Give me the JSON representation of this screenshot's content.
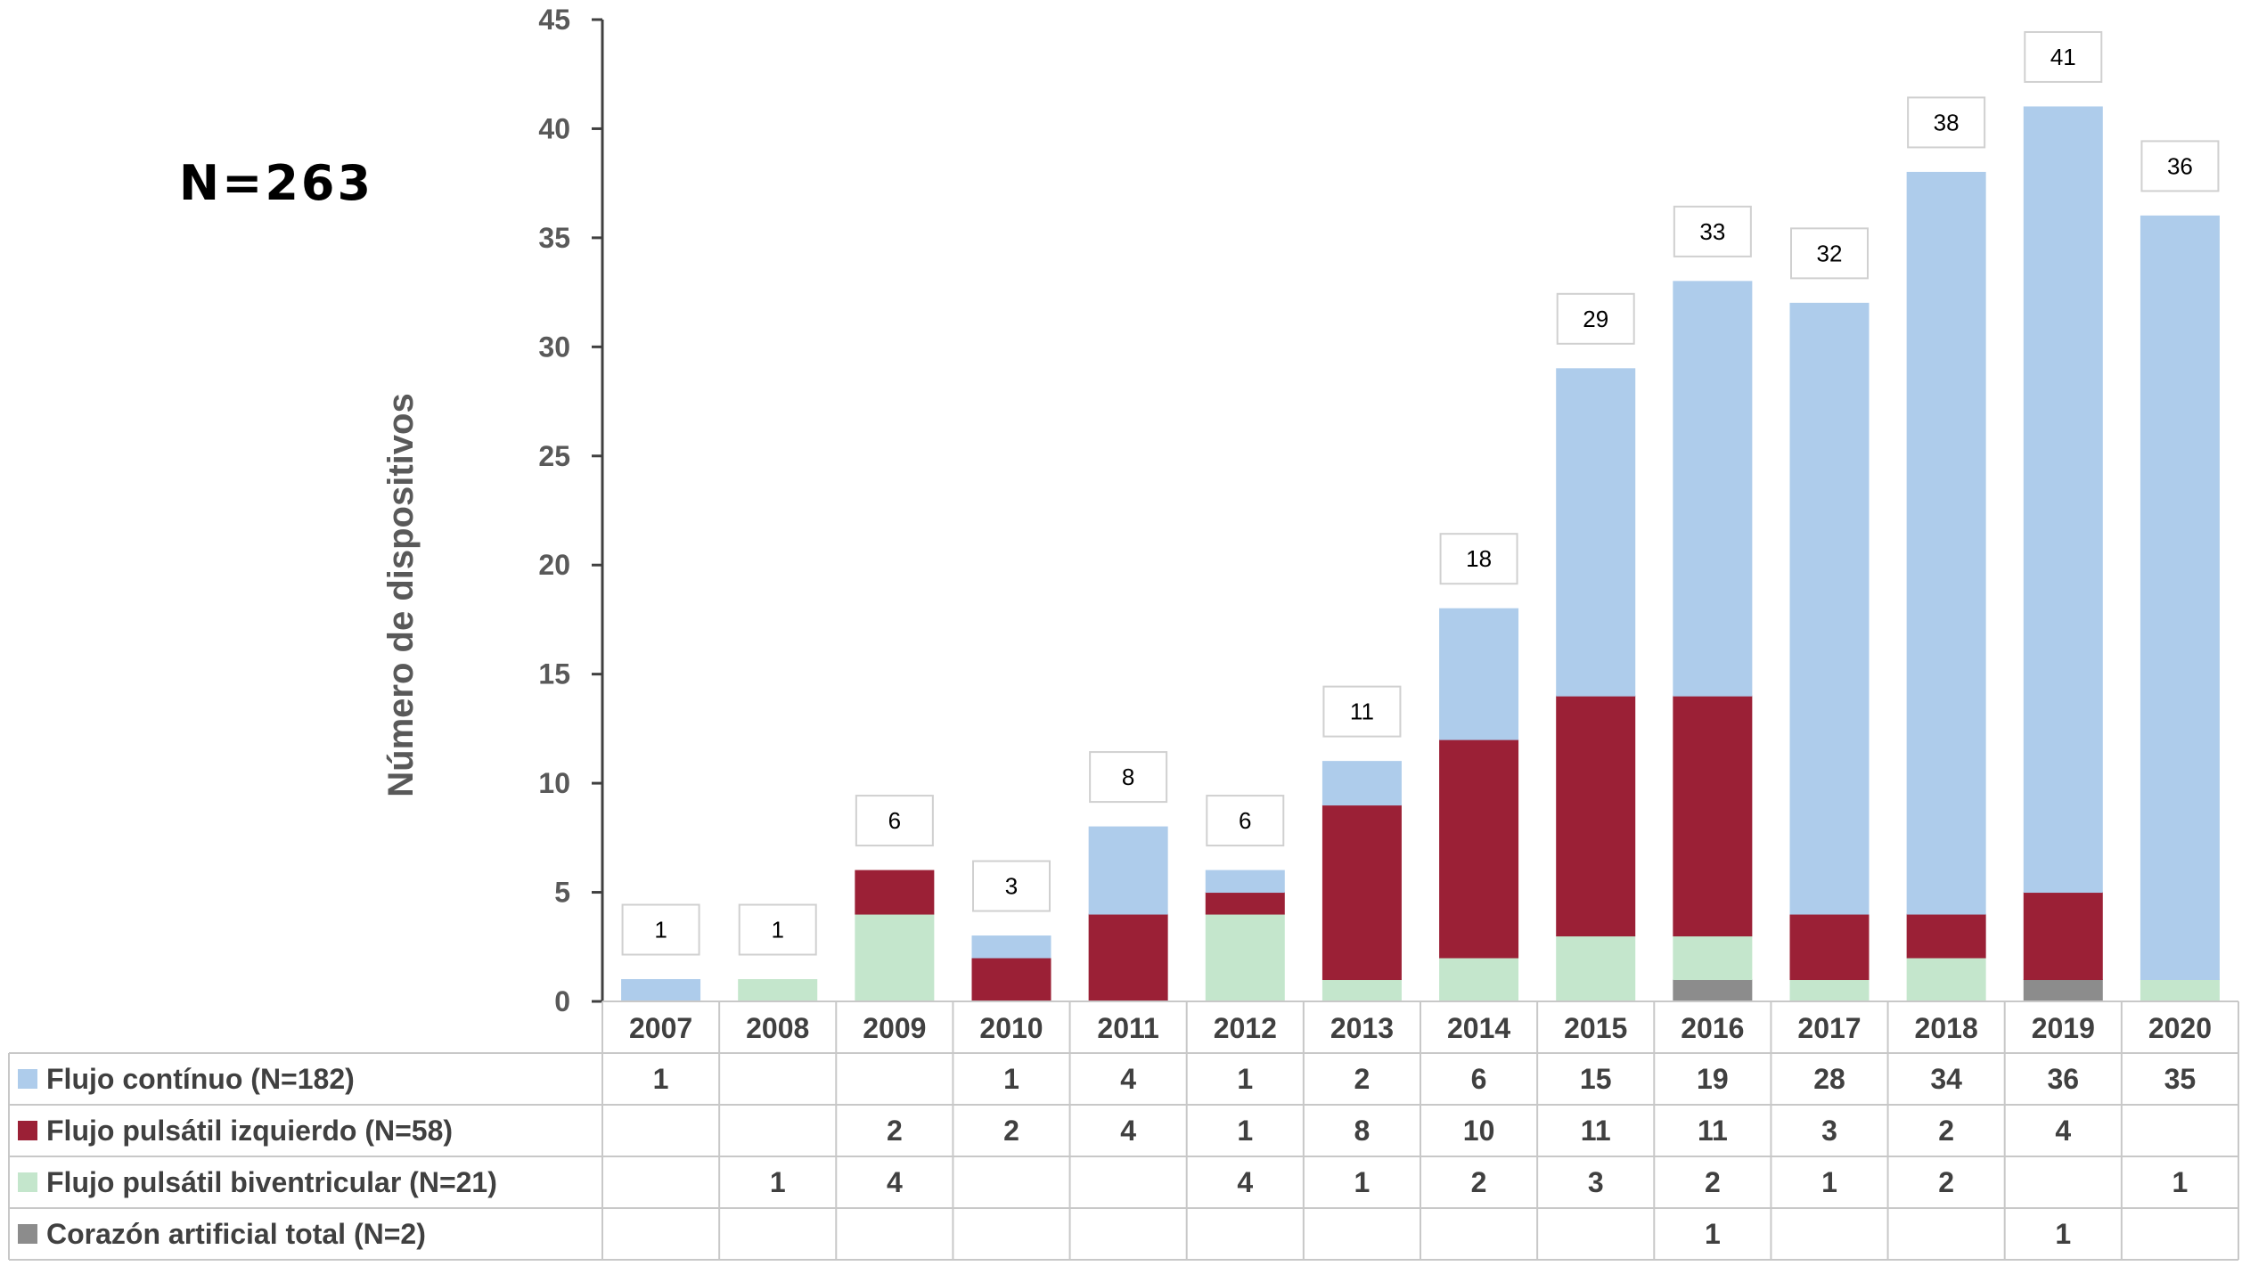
{
  "annotation": "N=263",
  "chart_data": {
    "type": "bar",
    "stacked": true,
    "categories": [
      "2007",
      "2008",
      "2009",
      "2010",
      "2011",
      "2012",
      "2013",
      "2014",
      "2015",
      "2016",
      "2017",
      "2018",
      "2019",
      "2020"
    ],
    "series": [
      {
        "name": "Corazón artificial total (N=2)",
        "color": "#8c8c8c",
        "values": [
          null,
          null,
          null,
          null,
          null,
          null,
          null,
          null,
          null,
          1,
          null,
          null,
          1,
          null
        ]
      },
      {
        "name": "Flujo pulsátil biventricular (N=21)",
        "color": "#c4e6cc",
        "values": [
          null,
          1,
          4,
          null,
          null,
          4,
          1,
          2,
          3,
          2,
          1,
          2,
          null,
          1
        ]
      },
      {
        "name": "Flujo pulsátil izquierdo (N=58)",
        "color": "#9b2036",
        "values": [
          null,
          null,
          2,
          2,
          4,
          1,
          8,
          10,
          11,
          11,
          3,
          2,
          4,
          null
        ]
      },
      {
        "name": "Flujo contínuo (N=182)",
        "color": "#aecceb",
        "values": [
          1,
          null,
          null,
          1,
          4,
          1,
          2,
          6,
          15,
          19,
          28,
          34,
          36,
          35
        ]
      }
    ],
    "totals": [
      1,
      1,
      6,
      3,
      8,
      6,
      11,
      18,
      29,
      33,
      32,
      38,
      41,
      36
    ],
    "ylabel": "Número de dispositivos",
    "xlabel": "",
    "ylim": [
      0,
      45
    ],
    "yticks": [
      0,
      5,
      10,
      15,
      20,
      25,
      30,
      35,
      40,
      45
    ],
    "table_row_order": [
      3,
      2,
      1,
      0
    ],
    "grid": false,
    "legend": "data table below chart"
  }
}
